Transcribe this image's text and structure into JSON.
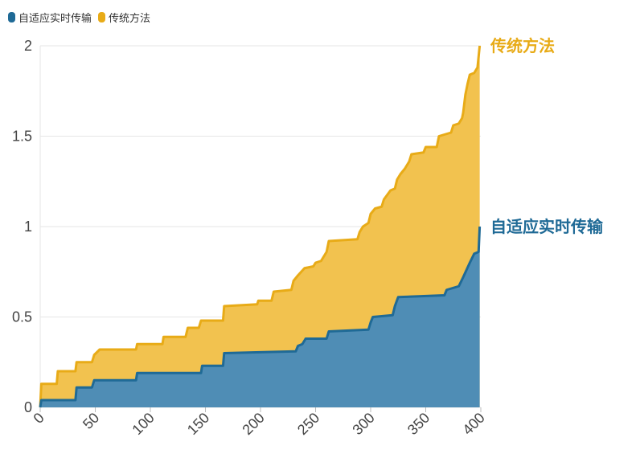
{
  "legend": {
    "items": [
      {
        "label": "自适应实时传输",
        "color": "#1f6a96"
      },
      {
        "label": "传统方法",
        "color": "#e8ab17"
      }
    ]
  },
  "chart_data": {
    "type": "area",
    "stacked": true,
    "grid": "horizontal",
    "legend_position": "top-left",
    "xlim": [
      0,
      400
    ],
    "ylim": [
      0,
      2
    ],
    "x_ticks": [
      0,
      50,
      100,
      150,
      200,
      250,
      300,
      350,
      400
    ],
    "y_ticks": [
      0,
      0.5,
      1,
      1.5,
      2
    ],
    "y_tick_labels": [
      "0",
      "0.5",
      "1",
      "1.5",
      "2"
    ],
    "series": [
      {
        "name": "自适应实时传输",
        "color": "#1f6a96",
        "fill": "#4f8db5",
        "points": [
          [
            0,
            0
          ],
          [
            1,
            0.04
          ],
          [
            32,
            0.04
          ],
          [
            33,
            0.11
          ],
          [
            47,
            0.11
          ],
          [
            49,
            0.15
          ],
          [
            87,
            0.15
          ],
          [
            88,
            0.19
          ],
          [
            146,
            0.19
          ],
          [
            147,
            0.23
          ],
          [
            166,
            0.23
          ],
          [
            167,
            0.3
          ],
          [
            232,
            0.31
          ],
          [
            234,
            0.34
          ],
          [
            238,
            0.35
          ],
          [
            241,
            0.38
          ],
          [
            260,
            0.38
          ],
          [
            262,
            0.42
          ],
          [
            298,
            0.43
          ],
          [
            300,
            0.47
          ],
          [
            302,
            0.5
          ],
          [
            320,
            0.51
          ],
          [
            322,
            0.56
          ],
          [
            325,
            0.61
          ],
          [
            367,
            0.62
          ],
          [
            369,
            0.65
          ],
          [
            380,
            0.67
          ],
          [
            384,
            0.72
          ],
          [
            390,
            0.8
          ],
          [
            394,
            0.85
          ],
          [
            398,
            0.86
          ],
          [
            399,
            1.0
          ]
        ]
      },
      {
        "name": "传统方法",
        "color": "#e8ab17",
        "fill": "#f2c24f",
        "points": [
          [
            0,
            0
          ],
          [
            1,
            0.13
          ],
          [
            15,
            0.13
          ],
          [
            16,
            0.2
          ],
          [
            32,
            0.2
          ],
          [
            33,
            0.25
          ],
          [
            47,
            0.25
          ],
          [
            49,
            0.29
          ],
          [
            54,
            0.32
          ],
          [
            87,
            0.32
          ],
          [
            88,
            0.35
          ],
          [
            111,
            0.35
          ],
          [
            112,
            0.39
          ],
          [
            132,
            0.39
          ],
          [
            134,
            0.44
          ],
          [
            144,
            0.44
          ],
          [
            146,
            0.48
          ],
          [
            166,
            0.48
          ],
          [
            167,
            0.56
          ],
          [
            197,
            0.57
          ],
          [
            198,
            0.59
          ],
          [
            210,
            0.59
          ],
          [
            212,
            0.64
          ],
          [
            228,
            0.65
          ],
          [
            230,
            0.7
          ],
          [
            234,
            0.73
          ],
          [
            240,
            0.77
          ],
          [
            248,
            0.78
          ],
          [
            250,
            0.8
          ],
          [
            255,
            0.81
          ],
          [
            260,
            0.86
          ],
          [
            262,
            0.92
          ],
          [
            288,
            0.93
          ],
          [
            290,
            0.97
          ],
          [
            293,
            1.0
          ],
          [
            298,
            1.02
          ],
          [
            300,
            1.07
          ],
          [
            304,
            1.1
          ],
          [
            310,
            1.11
          ],
          [
            312,
            1.15
          ],
          [
            318,
            1.2
          ],
          [
            322,
            1.21
          ],
          [
            324,
            1.26
          ],
          [
            327,
            1.29
          ],
          [
            331,
            1.32
          ],
          [
            335,
            1.36
          ],
          [
            337,
            1.4
          ],
          [
            348,
            1.41
          ],
          [
            350,
            1.44
          ],
          [
            360,
            1.44
          ],
          [
            362,
            1.5
          ],
          [
            373,
            1.52
          ],
          [
            375,
            1.56
          ],
          [
            380,
            1.57
          ],
          [
            383,
            1.6
          ],
          [
            384,
            1.63
          ],
          [
            385,
            1.68
          ],
          [
            386,
            1.73
          ],
          [
            388,
            1.79
          ],
          [
            390,
            1.84
          ],
          [
            394,
            1.85
          ],
          [
            397,
            1.88
          ],
          [
            399,
            2.0
          ]
        ]
      }
    ],
    "end_labels": [
      {
        "text": "传统方法",
        "color": "#e8ab17",
        "y": 2.0
      },
      {
        "text": "自适应实时传输",
        "color": "#1f6a96",
        "y": 1.0
      }
    ]
  }
}
